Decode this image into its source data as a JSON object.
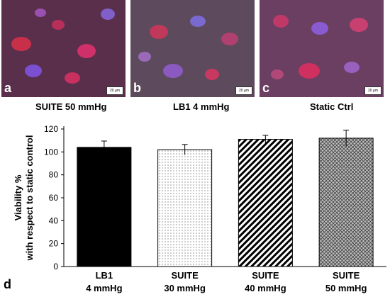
{
  "panels": [
    {
      "letter": "a",
      "caption": "SUITE 50 mmHg",
      "scale": "20 µm"
    },
    {
      "letter": "b",
      "caption": "LB1 4 mmHg",
      "scale": "20 µm"
    },
    {
      "letter": "c",
      "caption": "Static Ctrl",
      "scale": "20 µm"
    }
  ],
  "panel_d_letter": "d",
  "chart_data": {
    "type": "bar",
    "categories": [
      [
        "LB1",
        "4 mmHg"
      ],
      [
        "SUITE",
        "30 mmHg"
      ],
      [
        "SUITE",
        "40 mmHg"
      ],
      [
        "SUITE",
        "50 mmHg"
      ]
    ],
    "values": [
      104,
      102,
      111,
      112
    ],
    "errors": [
      5.5,
      4.5,
      3.5,
      7
    ],
    "patterns": [
      "solid-black",
      "dotted",
      "diagonal-hatch",
      "crosshatch"
    ],
    "ylabel_lines": [
      "Viability %",
      "with respect to static control"
    ],
    "ylim": [
      0,
      120
    ],
    "yticks": [
      0,
      20,
      40,
      60,
      80,
      100,
      120
    ],
    "grid": false
  }
}
